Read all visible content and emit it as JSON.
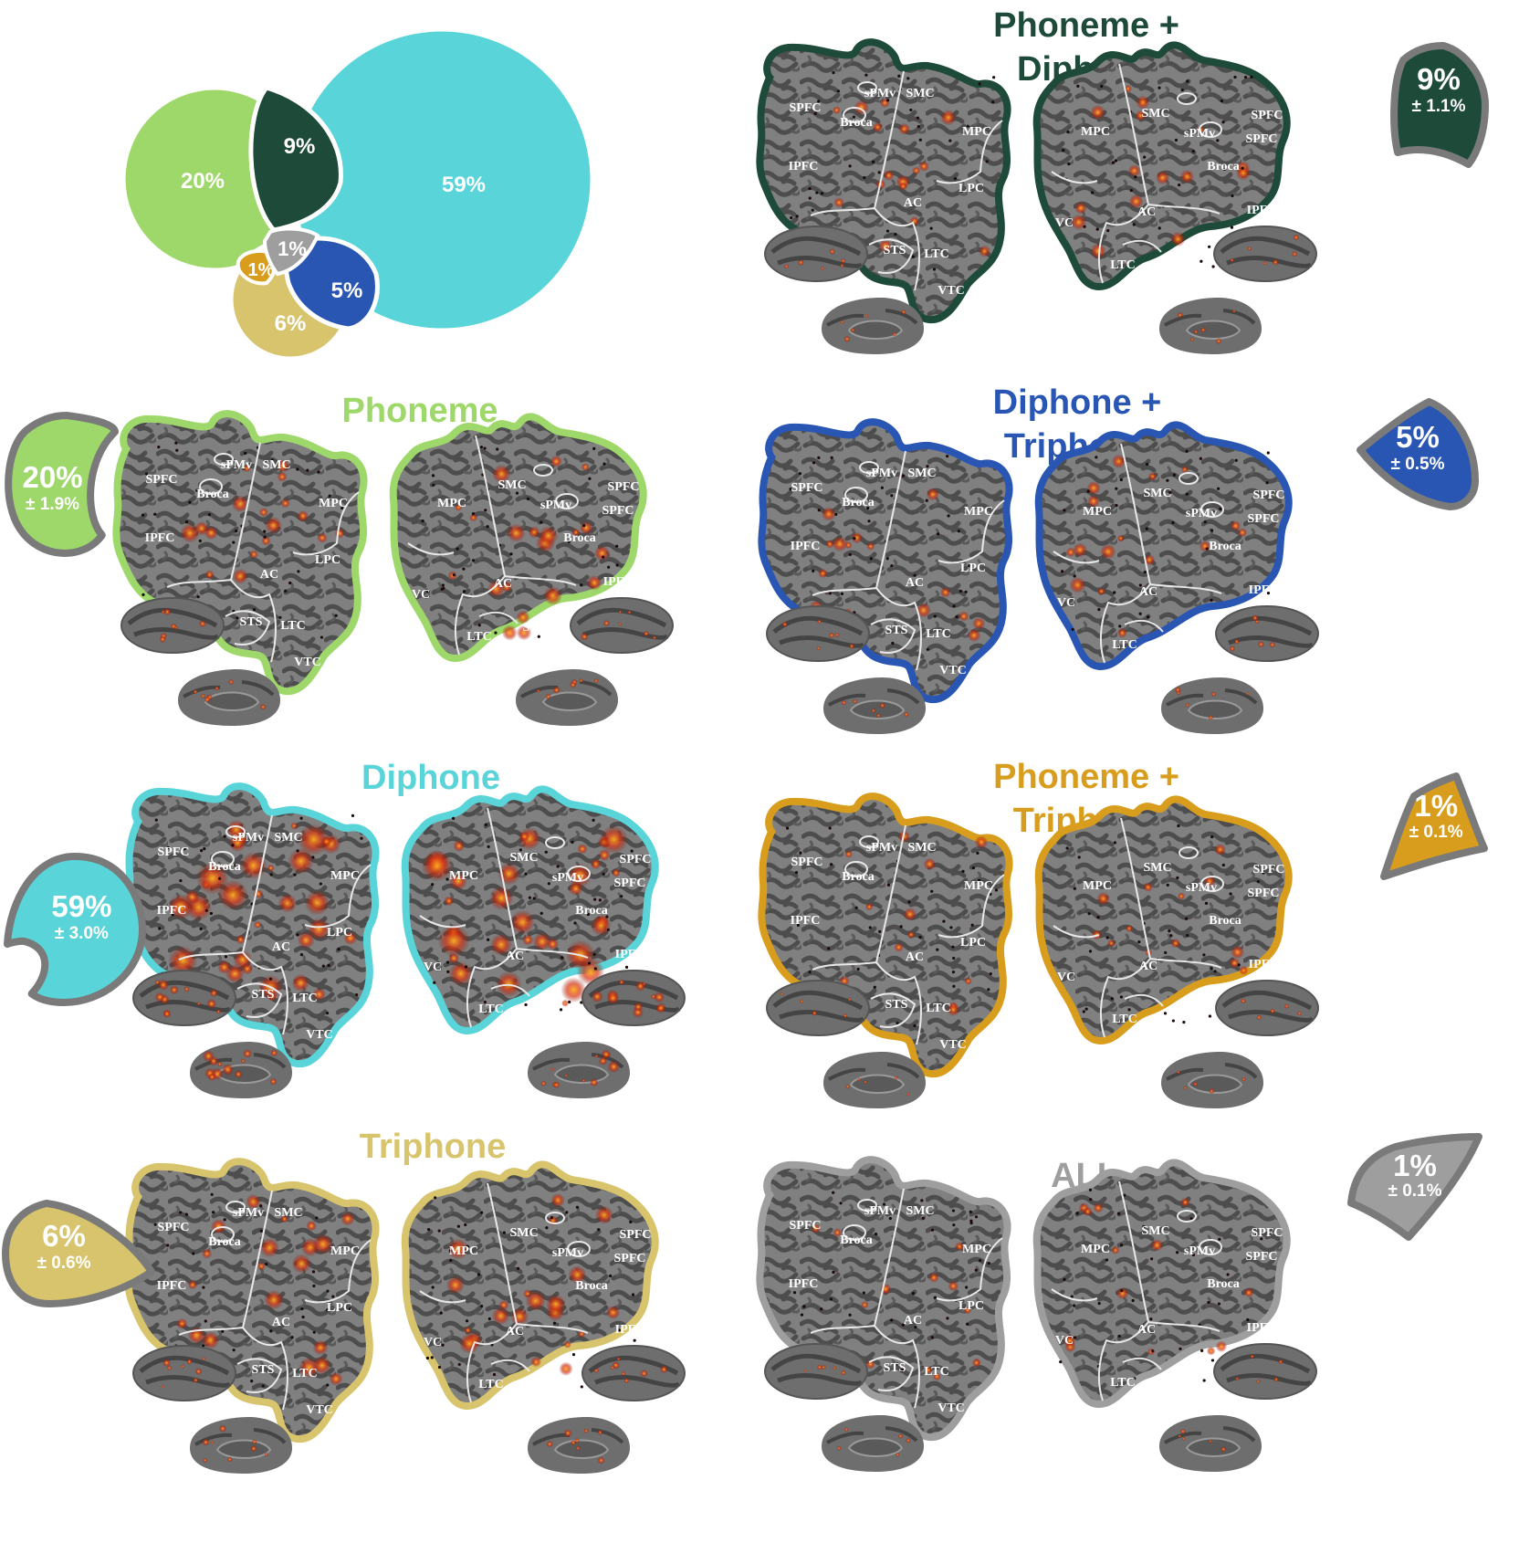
{
  "colors": {
    "phoneme": "#9fd86a",
    "diphone": "#59d4d9",
    "triphone": "#d8c46c",
    "phoneme_diphone": "#1e4a3a",
    "diphone_triphone": "#2a56b3",
    "phoneme_triphone": "#d89d1c",
    "all": "#9e9e9e",
    "cortex": "#7d7d7d",
    "cortex_dark": "#4f4f4f",
    "badge_rim": "#7a7a7a"
  },
  "venn": {
    "phoneme": "20%",
    "diphone": "59%",
    "triphone": "6%",
    "phoneme_diphone": "9%",
    "diphone_triphone": "5%",
    "phoneme_triphone": "1%",
    "all": "1%"
  },
  "panels": [
    {
      "key": "phoneme",
      "title_lines": [
        "Phoneme"
      ],
      "percent": "20%",
      "sd": "± 1.9%"
    },
    {
      "key": "diphone",
      "title_lines": [
        "Diphone"
      ],
      "percent": "59%",
      "sd": "± 3.0%"
    },
    {
      "key": "triphone",
      "title_lines": [
        "Triphone"
      ],
      "percent": "6%",
      "sd": "± 0.6%"
    },
    {
      "key": "phoneme_diphone",
      "title_lines": [
        "Phoneme +",
        "Diphone"
      ],
      "percent": "9%",
      "sd": "± 1.1%"
    },
    {
      "key": "diphone_triphone",
      "title_lines": [
        "Diphone +",
        "Triphone"
      ],
      "percent": "5%",
      "sd": "± 0.5%"
    },
    {
      "key": "phoneme_triphone",
      "title_lines": [
        "Phoneme +",
        "Triphone"
      ],
      "percent": "1%",
      "sd": "± 0.1%"
    },
    {
      "key": "all",
      "title_lines": [
        "ALL"
      ],
      "percent": "1%",
      "sd": "± 0.1%"
    }
  ],
  "roi_labels": {
    "left": [
      "SPFC",
      "sPMv",
      "SMC",
      "Broca",
      "MPC",
      "IPFC",
      "LPC",
      "AC",
      "VC",
      "STS",
      "LTC",
      "VTC"
    ],
    "right": [
      "SMC",
      "SPFC",
      "MPC",
      "sPMv",
      "SPFC",
      "Broca",
      "VC",
      "AC",
      "IPFC",
      "LTC",
      "STS",
      "VTC"
    ]
  },
  "cropped_label": ")"
}
